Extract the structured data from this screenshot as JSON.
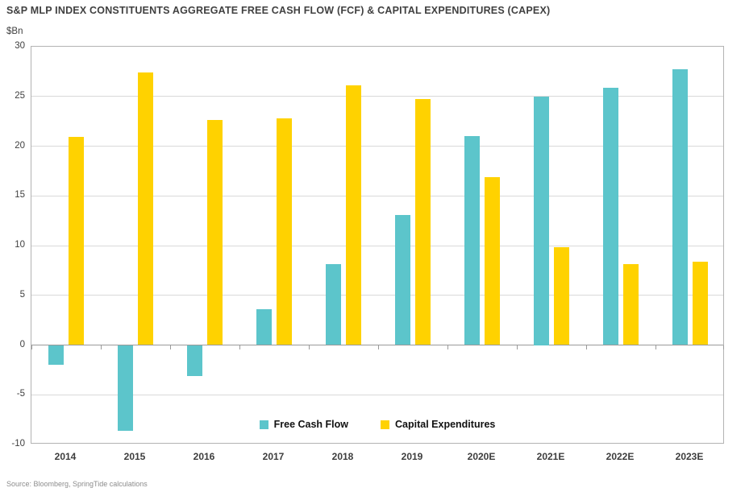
{
  "header": {
    "title": "S&P MLP INDEX CONSTITUENTS AGGREGATE FREE CASH FLOW (FCF) & CAPITAL EXPENDITURES (CAPEX)"
  },
  "footer": {
    "source": "Source: Bloomberg, SpringTide calculations"
  },
  "colors": {
    "free_cash_flow": "#5CC5CB",
    "capital_expenditures": "#FFD200",
    "grid": "#D9D9D9",
    "axis": "#9A9A9A",
    "border": "#B3B3B3"
  },
  "chart_data": {
    "type": "bar",
    "title": "S&P MLP INDEX CONSTITUENTS AGGREGATE FREE CASH FLOW (FCF) & CAPITAL EXPENDITURES (CAPEX)",
    "unit_label": "$Bn",
    "xlabel": "",
    "ylabel": "$Bn",
    "categories": [
      "2014",
      "2015",
      "2016",
      "2017",
      "2018",
      "2019",
      "2020E",
      "2021E",
      "2022E",
      "2023E"
    ],
    "series": [
      {
        "name": "Free Cash Flow",
        "color": "#5CC5CB",
        "values": [
          -2.0,
          -8.6,
          -3.1,
          3.6,
          8.1,
          13.1,
          21.0,
          25.0,
          25.9,
          27.7
        ]
      },
      {
        "name": "Capital Expenditures",
        "color": "#FFD200",
        "values": [
          20.9,
          27.4,
          22.6,
          22.8,
          26.1,
          24.7,
          16.9,
          9.8,
          8.1,
          8.4
        ]
      }
    ],
    "ylim": [
      -10,
      30
    ],
    "ytick_step": 5,
    "yticks": [
      30,
      25,
      20,
      15,
      10,
      5,
      0,
      -5,
      -10
    ],
    "grid": true,
    "legend_position": "bottom-inside"
  }
}
